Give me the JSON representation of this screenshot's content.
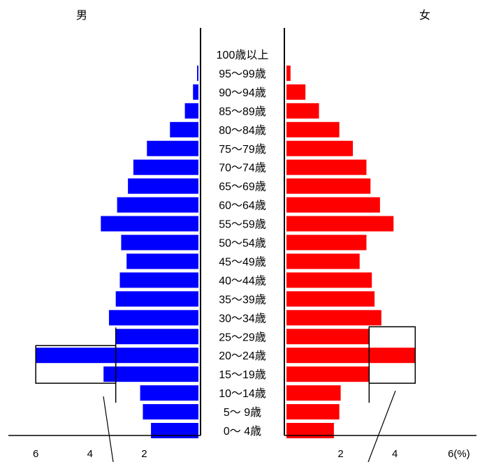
{
  "chart_data": {
    "type": "bar",
    "orientation": "horizontal",
    "layout": "population-pyramid",
    "left_label": "男",
    "right_label": "女",
    "categories": [
      "100歳以上",
      "95〜99歳",
      "90〜94歳",
      "85〜89歳",
      "80〜84歳",
      "75〜79歳",
      "70〜74歳",
      "65〜69歳",
      "60〜64歳",
      "55〜59歳",
      "50〜54歳",
      "45〜49歳",
      "40〜44歳",
      "35〜39歳",
      "30〜34歳",
      "25〜29歳",
      "20〜24歳",
      "15〜19歳",
      "10〜14歳",
      "5〜 9歳",
      "0〜 4歳"
    ],
    "series": [
      {
        "side": "left",
        "color": "#0000ff",
        "values": [
          0.0,
          0.05,
          0.2,
          0.5,
          1.05,
          1.9,
          2.4,
          2.6,
          3.0,
          3.6,
          2.85,
          2.65,
          2.9,
          3.05,
          3.3,
          3.05,
          6.0,
          3.5,
          2.15,
          2.05,
          1.75
        ]
      },
      {
        "side": "right",
        "color": "#ff0000",
        "values": [
          0.0,
          0.15,
          0.7,
          1.2,
          1.95,
          2.45,
          2.95,
          3.1,
          3.45,
          3.95,
          2.95,
          2.7,
          3.15,
          3.25,
          3.5,
          3.05,
          4.75,
          3.05,
          2.0,
          1.95,
          1.75
        ]
      }
    ],
    "xlim": [
      0,
      6
    ],
    "left_ticks": [
      {
        "v": 6,
        "label": "6"
      },
      {
        "v": 4,
        "label": "4"
      },
      {
        "v": 2,
        "label": "2"
      }
    ],
    "right_ticks": [
      {
        "v": 2,
        "label": "2"
      },
      {
        "v": 4,
        "label": "4"
      },
      {
        "v": 6,
        "label": "6(%)"
      }
    ],
    "highlight_boxes": [
      {
        "side": "left",
        "from_category": "20〜24歳",
        "to_category": "15〜19歳",
        "value": 6.0
      },
      {
        "side": "right",
        "from_category": "25〜29歳",
        "to_category": "15〜19歳",
        "value": 4.75
      }
    ],
    "reference_lines": [
      {
        "side": "left",
        "value": 3.05,
        "from_category": "25〜29歳",
        "to_category": "10〜14歳"
      },
      {
        "side": "right",
        "value": 3.05,
        "from_category": "25〜29歳",
        "to_category": "10〜14歳"
      }
    ],
    "grid": false,
    "legend": "none"
  }
}
